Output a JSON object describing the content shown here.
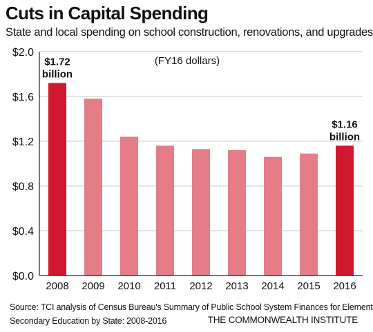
{
  "title": "Cuts in Capital Spending",
  "subtitle": "State and local spending on school construction, renovations, and upgrades",
  "source_line1": "Source: TCI analysis of Census Bureau's Summary of Public School System Finances for Elementary-",
  "source_line2": "Secondary Education by State: 2008-2016",
  "organization": "THE COMMONWEALTH INSTITUTE",
  "chart_data": {
    "type": "bar",
    "categories": [
      "2008",
      "2009",
      "2010",
      "2011",
      "2012",
      "2013",
      "2014",
      "2015",
      "2016"
    ],
    "values": [
      1.72,
      1.58,
      1.24,
      1.16,
      1.13,
      1.12,
      1.06,
      1.09,
      1.16
    ],
    "highlighted": [
      "2008",
      "2016"
    ],
    "ylim": [
      0,
      2.0
    ],
    "yticks": [
      0,
      0.4,
      0.8,
      1.2,
      1.6,
      2.0
    ],
    "ytick_labels": [
      "$0.0",
      "$0.4",
      "$0.8",
      "$1.2",
      "$1.6",
      "$2.0"
    ],
    "annotation": "(FY16 dollars)",
    "data_labels": [
      {
        "category": "2008",
        "line1": "$1.72",
        "line2": "billion"
      },
      {
        "category": "2016",
        "line1": "$1.16",
        "line2": "billion"
      }
    ],
    "grid": true,
    "colors": {
      "highlight": "#d0182f",
      "normal": "#e57d89",
      "grid": "#c8c8c8",
      "axis": "#222222"
    }
  }
}
